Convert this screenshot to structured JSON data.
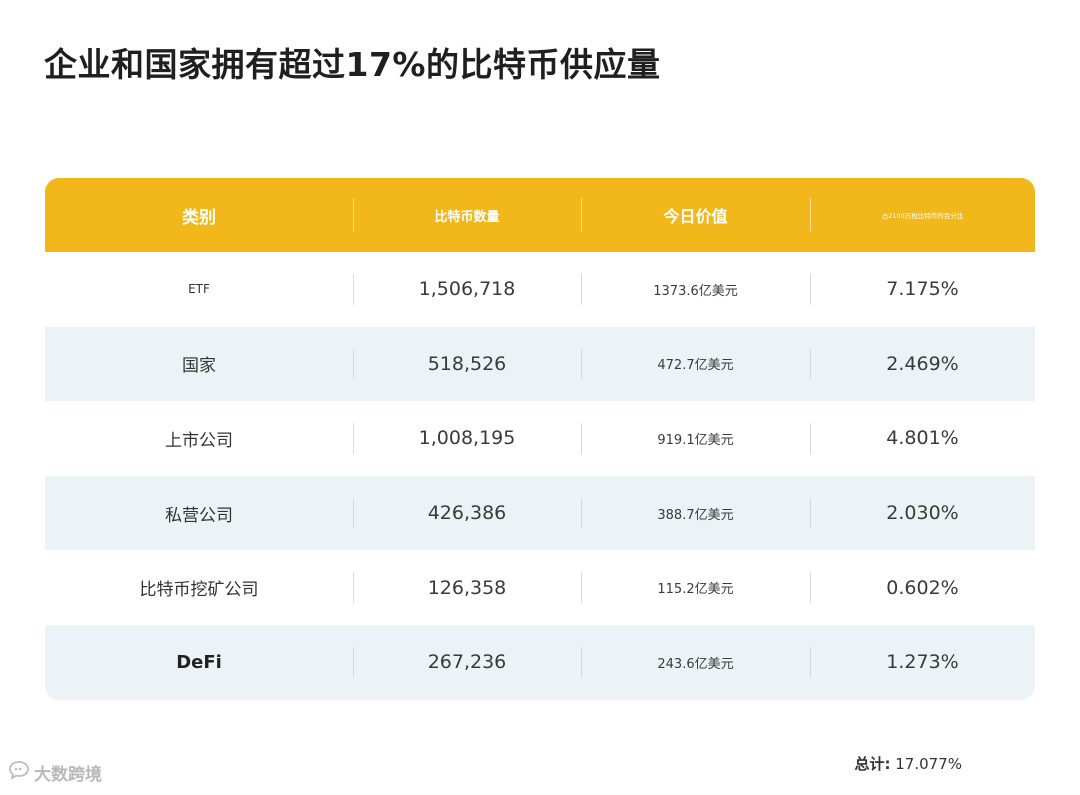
{
  "title": "企业和国家拥有超过17%的比特币供应量",
  "table": {
    "headers": [
      "类别",
      "比特币数量",
      "今日价值",
      "占2100万枚比特币的百分比"
    ],
    "rows": [
      {
        "category": "ETF",
        "btc": "1,506,718",
        "value": "1373.6亿美元",
        "pct": "7.175%"
      },
      {
        "category": "国家",
        "btc": "518,526",
        "value": "472.7亿美元",
        "pct": "2.469%"
      },
      {
        "category": "上市公司",
        "btc": "1,008,195",
        "value": "919.1亿美元",
        "pct": "4.801%"
      },
      {
        "category": "私营公司",
        "btc": "426,386",
        "value": "388.7亿美元",
        "pct": "2.030%"
      },
      {
        "category": "比特币挖矿公司",
        "btc": "126,358",
        "value": "115.2亿美元",
        "pct": "0.602%"
      },
      {
        "category": "DeFi",
        "btc": "267,236",
        "value": "243.6亿美元",
        "pct": "1.273%"
      }
    ]
  },
  "total": {
    "label": "总计:",
    "value": "17.077%"
  },
  "watermark": {
    "text": "大数跨境",
    "icon": "chat-bubble-icon"
  },
  "colors": {
    "header": "#f2b71b",
    "alt_row": "#ecf3f6"
  }
}
